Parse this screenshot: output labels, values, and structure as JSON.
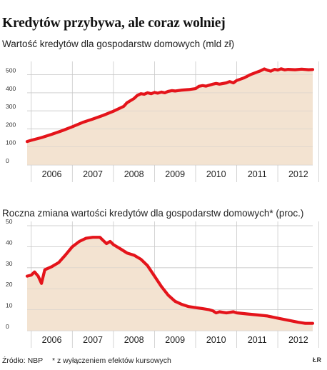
{
  "header": {
    "title": "Kredytów przybywa, ale coraz wolniej"
  },
  "footer": {
    "source": "Źródło: NBP",
    "footnote": "* z wyłączeniem efektów kursowych",
    "logo": "ŁR"
  },
  "colors": {
    "line": "#e4141b",
    "fill": "#f3e3d1",
    "grid": "#c9c9c9"
  },
  "chart_data": [
    {
      "type": "area",
      "title": "Wartość kredytów dla gospodarstw domowych (mld zł)",
      "xlabel": "",
      "ylabel": "",
      "x_ticks": [
        "2006",
        "2007",
        "2008",
        "2009",
        "2010",
        "2011",
        "2012"
      ],
      "y_ticks": [
        0,
        100,
        200,
        300,
        400,
        500
      ],
      "xlim": [
        2005.9,
        2012.85
      ],
      "ylim": [
        0,
        550
      ],
      "grid": true,
      "series": [
        {
          "values": [
            [
              2005.9,
              130
            ],
            [
              2006.0,
              137
            ],
            [
              2006.25,
              152
            ],
            [
              2006.5,
              170
            ],
            [
              2006.75,
              190
            ],
            [
              2007.0,
              212
            ],
            [
              2007.25,
              236
            ],
            [
              2007.5,
              255
            ],
            [
              2007.75,
              275
            ],
            [
              2008.0,
              298
            ],
            [
              2008.25,
              325
            ],
            [
              2008.33,
              345
            ],
            [
              2008.5,
              368
            ],
            [
              2008.58,
              385
            ],
            [
              2008.67,
              395
            ],
            [
              2008.75,
              392
            ],
            [
              2008.83,
              400
            ],
            [
              2008.92,
              395
            ],
            [
              2009.0,
              402
            ],
            [
              2009.08,
              398
            ],
            [
              2009.17,
              404
            ],
            [
              2009.25,
              400
            ],
            [
              2009.33,
              408
            ],
            [
              2009.42,
              412
            ],
            [
              2009.5,
              410
            ],
            [
              2009.67,
              415
            ],
            [
              2009.83,
              418
            ],
            [
              2010.0,
              423
            ],
            [
              2010.08,
              436
            ],
            [
              2010.17,
              440
            ],
            [
              2010.25,
              437
            ],
            [
              2010.42,
              448
            ],
            [
              2010.5,
              452
            ],
            [
              2010.58,
              448
            ],
            [
              2010.75,
              455
            ],
            [
              2010.83,
              462
            ],
            [
              2010.92,
              455
            ],
            [
              2011.0,
              468
            ],
            [
              2011.17,
              482
            ],
            [
              2011.33,
              500
            ],
            [
              2011.5,
              515
            ],
            [
              2011.58,
              522
            ],
            [
              2011.67,
              532
            ],
            [
              2011.75,
              525
            ],
            [
              2011.83,
              520
            ],
            [
              2011.92,
              530
            ],
            [
              2012.0,
              526
            ],
            [
              2012.08,
              533
            ],
            [
              2012.17,
              527
            ],
            [
              2012.25,
              530
            ],
            [
              2012.42,
              528
            ],
            [
              2012.58,
              531
            ],
            [
              2012.75,
              528
            ],
            [
              2012.85,
              529
            ]
          ]
        }
      ]
    },
    {
      "type": "area",
      "title": "Roczna zmiana wartości kredytów dla gospodarstw domowych* (proc.)",
      "xlabel": "",
      "ylabel": "",
      "x_ticks": [
        "2006",
        "2007",
        "2008",
        "2009",
        "2010",
        "2011",
        "2012"
      ],
      "y_ticks": [
        0,
        10,
        20,
        30,
        40,
        50
      ],
      "xlim": [
        2005.9,
        2012.85
      ],
      "ylim": [
        0,
        50
      ],
      "grid": true,
      "series": [
        {
          "values": [
            [
              2005.9,
              26
            ],
            [
              2006.0,
              26.5
            ],
            [
              2006.08,
              28
            ],
            [
              2006.17,
              26
            ],
            [
              2006.25,
              22.5
            ],
            [
              2006.33,
              29
            ],
            [
              2006.5,
              30.5
            ],
            [
              2006.67,
              32.5
            ],
            [
              2006.83,
              36
            ],
            [
              2007.0,
              40
            ],
            [
              2007.17,
              42.5
            ],
            [
              2007.33,
              44
            ],
            [
              2007.5,
              44.5
            ],
            [
              2007.67,
              44.5
            ],
            [
              2007.75,
              43
            ],
            [
              2007.83,
              41.5
            ],
            [
              2007.92,
              42.5
            ],
            [
              2008.0,
              41
            ],
            [
              2008.17,
              39
            ],
            [
              2008.33,
              37
            ],
            [
              2008.5,
              36
            ],
            [
              2008.67,
              34
            ],
            [
              2008.83,
              31
            ],
            [
              2009.0,
              26
            ],
            [
              2009.17,
              21
            ],
            [
              2009.33,
              17
            ],
            [
              2009.5,
              14
            ],
            [
              2009.67,
              12.5
            ],
            [
              2009.83,
              11.5
            ],
            [
              2010.0,
              11
            ],
            [
              2010.17,
              10.5
            ],
            [
              2010.33,
              10
            ],
            [
              2010.42,
              9.5
            ],
            [
              2010.5,
              8.5
            ],
            [
              2010.58,
              9
            ],
            [
              2010.75,
              8.5
            ],
            [
              2010.92,
              9
            ],
            [
              2011.0,
              8.5
            ],
            [
              2011.25,
              8
            ],
            [
              2011.5,
              7.5
            ],
            [
              2011.75,
              7
            ],
            [
              2012.0,
              6
            ],
            [
              2012.25,
              5
            ],
            [
              2012.5,
              4
            ],
            [
              2012.67,
              3.5
            ],
            [
              2012.85,
              3.5
            ]
          ]
        }
      ]
    }
  ]
}
